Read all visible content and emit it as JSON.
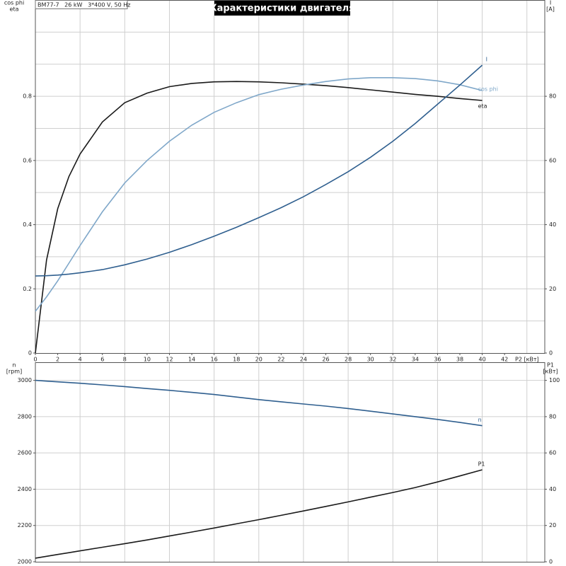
{
  "chart_data": [
    {
      "type": "line",
      "title": "Характеристики двигателя",
      "subtitle": "BM77-7   26 kW   3*400 V, 50 Hz",
      "xlabel": "P2 [кВт]",
      "ylabel_lines": [
        "cos phi",
        "eta"
      ],
      "y2label_lines": [
        "I",
        "[A]"
      ],
      "x": [
        0,
        1,
        2,
        3,
        4,
        6,
        8,
        10,
        12,
        14,
        16,
        18,
        20,
        22,
        24,
        26,
        28,
        30,
        32,
        34,
        36,
        38,
        40
      ],
      "xlim": [
        0,
        45.6
      ],
      "xticks": [
        0,
        2,
        4,
        6,
        8,
        10,
        12,
        14,
        16,
        18,
        20,
        22,
        24,
        26,
        28,
        30,
        32,
        34,
        36,
        38,
        40,
        42
      ],
      "xgrid": [
        4,
        8,
        12,
        16,
        20,
        24,
        28,
        32,
        36,
        40,
        44
      ],
      "ylim": [
        0,
        1.1
      ],
      "yticks": [
        0,
        0.2,
        0.4,
        0.6,
        0.8
      ],
      "ygrid": [
        0.1,
        0.2,
        0.3,
        0.4,
        0.5,
        0.6,
        0.7,
        0.8,
        0.9,
        1.0
      ],
      "y2lim": [
        0,
        110
      ],
      "y2ticks": [
        0,
        20,
        40,
        60,
        80
      ],
      "series": [
        {
          "name": "eta",
          "color": "#1a1a1a",
          "values": [
            0,
            0.29,
            0.45,
            0.55,
            0.62,
            0.72,
            0.78,
            0.81,
            0.83,
            0.84,
            0.845,
            0.846,
            0.845,
            0.842,
            0.838,
            0.833,
            0.827,
            0.82,
            0.813,
            0.806,
            0.8,
            0.793,
            0.787
          ]
        },
        {
          "name": "cos phi",
          "color": "#7fa7c9",
          "values": [
            0.13,
            0.175,
            0.225,
            0.28,
            0.335,
            0.44,
            0.53,
            0.6,
            0.66,
            0.71,
            0.75,
            0.78,
            0.805,
            0.822,
            0.835,
            0.846,
            0.854,
            0.858,
            0.858,
            0.855,
            0.848,
            0.836,
            0.818
          ]
        },
        {
          "name": "I",
          "color": "#2f5f8f",
          "axis": "y2",
          "values": [
            24,
            24.1,
            24.3,
            24.6,
            25,
            26,
            27.5,
            29.3,
            31.4,
            33.8,
            36.4,
            39.2,
            42.2,
            45.3,
            48.7,
            52.5,
            56.5,
            61,
            66,
            71.5,
            77.5,
            83.5,
            89.7
          ]
        }
      ]
    },
    {
      "type": "line",
      "ylabel_lines": [
        "n",
        "[rpm]"
      ],
      "y2label_lines": [
        "P1",
        "[кВт]"
      ],
      "x": [
        0,
        1,
        2,
        3,
        4,
        6,
        8,
        10,
        12,
        14,
        16,
        18,
        20,
        22,
        24,
        26,
        28,
        30,
        32,
        34,
        36,
        38,
        40
      ],
      "xlim": [
        0,
        45.6
      ],
      "xgrid": [
        4,
        8,
        12,
        16,
        20,
        24,
        28,
        32,
        36,
        40,
        44
      ],
      "ylim": [
        2000,
        3100
      ],
      "yticks": [
        2000,
        2200,
        2400,
        2600,
        2800,
        3000
      ],
      "ygrid": [
        2200,
        2400,
        2600,
        2800,
        3000
      ],
      "y2lim": [
        0,
        110
      ],
      "y2ticks": [
        0,
        20,
        40,
        60,
        80,
        100
      ],
      "series": [
        {
          "name": "n",
          "color": "#2f5f8f",
          "values": [
            3000,
            2996,
            2992,
            2988,
            2984,
            2975,
            2966,
            2955,
            2945,
            2934,
            2922,
            2908,
            2894,
            2882,
            2870,
            2858,
            2845,
            2830,
            2815,
            2800,
            2785,
            2768,
            2750
          ]
        },
        {
          "name": "P1",
          "color": "#1a1a1a",
          "axis": "y2",
          "values": [
            2,
            3,
            4,
            5,
            6,
            8,
            10,
            12,
            14.2,
            16.4,
            18.6,
            20.9,
            23.2,
            25.6,
            28,
            30.5,
            33,
            35.6,
            38.2,
            40.9,
            44,
            47.3,
            50.7
          ]
        }
      ]
    }
  ]
}
